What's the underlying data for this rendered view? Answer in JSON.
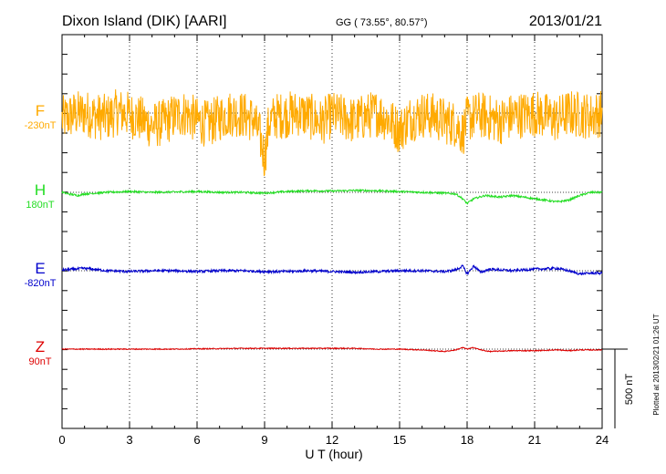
{
  "header": {
    "station": "Dixon Island (DIK)  [AARI]",
    "coords": "GG ( 73.55°,  80.57°)",
    "date": "2013/01/21"
  },
  "footer_note": "Plotted at 2013/02/21 01:26 UT",
  "chart_data": {
    "type": "line",
    "title": "Dixon Island (DIK)  [AARI]",
    "xlabel": "U T (hour)",
    "xlim": [
      0,
      24
    ],
    "x_ticks": [
      "0",
      "3",
      "6",
      "9",
      "12",
      "15",
      "18",
      "21",
      "24"
    ],
    "scale_bar": {
      "label": "500 nT",
      "value_nT": 500
    },
    "series": [
      {
        "name": "F",
        "baseline": "-230nT",
        "color": "#ffaa00",
        "x": [
          0,
          0.5,
          1,
          1.5,
          2,
          2.5,
          3,
          3.5,
          4,
          4.5,
          5,
          5.5,
          6,
          6.5,
          7,
          7.5,
          8,
          8.5,
          8.8,
          9,
          9.2,
          9.5,
          10,
          10.5,
          11,
          11.5,
          12,
          12.5,
          13,
          13.5,
          14,
          14.5,
          15,
          15.5,
          16,
          16.5,
          17,
          17.5,
          17.8,
          18,
          18.5,
          19,
          19.5,
          20,
          20.5,
          21,
          21.5,
          22,
          22.5,
          23,
          23.5,
          24
        ],
        "values": [
          -40,
          -10,
          0,
          -20,
          -30,
          10,
          -10,
          -40,
          -80,
          -60,
          -20,
          0,
          -50,
          -70,
          -30,
          0,
          -10,
          -40,
          -150,
          -280,
          -60,
          -20,
          -10,
          0,
          -20,
          -60,
          -10,
          -30,
          -50,
          -20,
          0,
          -40,
          -110,
          -30,
          -10,
          -20,
          -50,
          -70,
          -130,
          -40,
          -10,
          -30,
          -50,
          -20,
          -10,
          0,
          -20,
          -40,
          0,
          -10,
          -20,
          0
        ],
        "noise_nT": 150
      },
      {
        "name": "H",
        "baseline": "180nT",
        "color": "#22dd22",
        "x": [
          0,
          0.3,
          0.7,
          1,
          1.5,
          2,
          3,
          4,
          5,
          6,
          7,
          8,
          9,
          10,
          11,
          12,
          13,
          14,
          15,
          16,
          17,
          17.5,
          17.8,
          18,
          18.3,
          18.8,
          19.5,
          20,
          21,
          22,
          22.5,
          23,
          23.5,
          24
        ],
        "values": [
          0,
          -10,
          -20,
          -10,
          -5,
          0,
          5,
          0,
          2,
          5,
          0,
          0,
          -5,
          5,
          10,
          8,
          12,
          10,
          5,
          0,
          -5,
          -10,
          -40,
          -70,
          -40,
          -20,
          -30,
          -20,
          -40,
          -60,
          -50,
          -20,
          0,
          0
        ],
        "noise_nT": 6
      },
      {
        "name": "E",
        "baseline": "-820nT",
        "color": "#0000cc",
        "x": [
          0,
          0.5,
          1,
          1.5,
          2,
          3,
          4,
          5,
          6,
          7,
          8,
          9,
          10,
          11,
          12,
          13,
          14,
          15,
          16,
          17,
          17.5,
          17.8,
          18,
          18.3,
          18.6,
          19,
          20,
          21,
          22,
          22.5,
          23,
          23.5,
          24
        ],
        "values": [
          5,
          10,
          15,
          8,
          0,
          -5,
          0,
          0,
          -5,
          0,
          0,
          -5,
          -5,
          0,
          -5,
          -10,
          -5,
          0,
          0,
          -5,
          5,
          30,
          -20,
          30,
          -10,
          10,
          0,
          10,
          15,
          0,
          -20,
          -15,
          -15
        ],
        "noise_nT": 8
      },
      {
        "name": "Z",
        "baseline": "90nT",
        "color": "#dd0000",
        "x": [
          0,
          1,
          2,
          3,
          4,
          5,
          6,
          7,
          8,
          9,
          10,
          11,
          12,
          13,
          14,
          15,
          16,
          16.5,
          17,
          17.5,
          17.8,
          18,
          18.3,
          18.6,
          19,
          20,
          21,
          22,
          22.5,
          23,
          24
        ],
        "values": [
          0,
          0,
          0,
          0,
          0,
          0,
          2,
          3,
          5,
          5,
          5,
          5,
          5,
          5,
          0,
          0,
          -5,
          -10,
          -15,
          -5,
          10,
          0,
          10,
          -5,
          -15,
          -10,
          -10,
          -5,
          -10,
          -5,
          -5
        ],
        "noise_nT": 3
      }
    ]
  }
}
